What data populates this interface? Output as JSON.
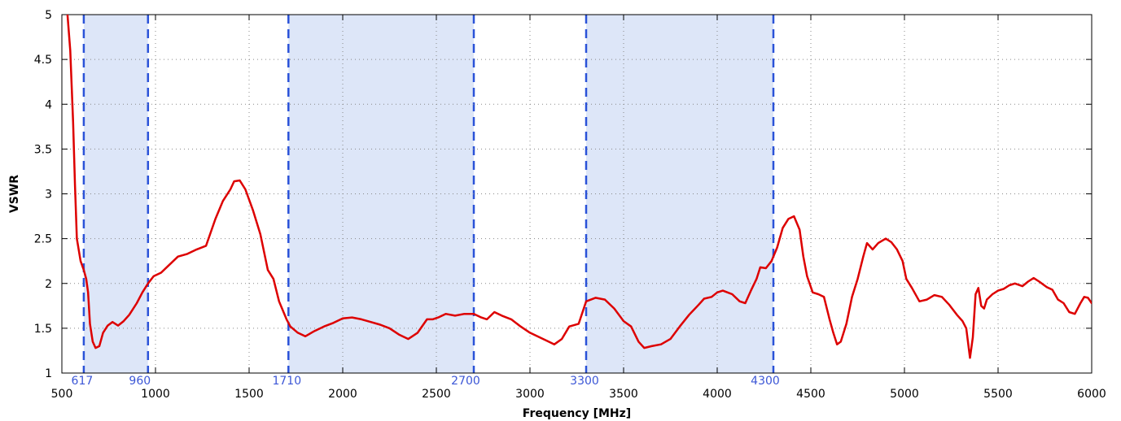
{
  "chart_data": {
    "type": "line",
    "xlabel": "Frequency [MHz]",
    "ylabel": "VSWR",
    "xlim": [
      500,
      6000
    ],
    "ylim": [
      1,
      5
    ],
    "xticks": [
      500,
      1000,
      1500,
      2000,
      2500,
      3000,
      3500,
      4000,
      4500,
      5000,
      5500,
      6000
    ],
    "yticks": [
      1,
      1.5,
      2,
      2.5,
      3,
      3.5,
      4,
      4.5,
      5
    ],
    "ytick_labels": [
      "1",
      "1.5",
      "2",
      "2.5",
      "3",
      "3.5",
      "4",
      "4.5",
      "5"
    ],
    "grid": true,
    "line_color": "#dd0000",
    "band_fill": "#dde6f8",
    "band_line_color": "#2a52d8",
    "band_label_color": "#3b56d6",
    "bands": [
      {
        "start": 617,
        "end": 960,
        "start_label": "617",
        "end_label": "960"
      },
      {
        "start": 1710,
        "end": 2700,
        "start_label": "1710",
        "end_label": "2700"
      },
      {
        "start": 3300,
        "end": 4300,
        "start_label": "3300",
        "end_label": "4300"
      }
    ],
    "series": [
      {
        "points": [
          [
            530,
            5.0
          ],
          [
            545,
            4.6
          ],
          [
            560,
            3.8
          ],
          [
            570,
            3.1
          ],
          [
            580,
            2.5
          ],
          [
            600,
            2.25
          ],
          [
            617,
            2.15
          ],
          [
            630,
            2.05
          ],
          [
            640,
            1.9
          ],
          [
            650,
            1.55
          ],
          [
            665,
            1.35
          ],
          [
            680,
            1.28
          ],
          [
            700,
            1.3
          ],
          [
            720,
            1.45
          ],
          [
            745,
            1.53
          ],
          [
            770,
            1.57
          ],
          [
            800,
            1.53
          ],
          [
            830,
            1.58
          ],
          [
            860,
            1.65
          ],
          [
            900,
            1.78
          ],
          [
            930,
            1.9
          ],
          [
            960,
            2.0
          ],
          [
            990,
            2.08
          ],
          [
            1030,
            2.12
          ],
          [
            1070,
            2.2
          ],
          [
            1120,
            2.3
          ],
          [
            1170,
            2.33
          ],
          [
            1220,
            2.38
          ],
          [
            1270,
            2.42
          ],
          [
            1320,
            2.72
          ],
          [
            1360,
            2.92
          ],
          [
            1400,
            3.05
          ],
          [
            1420,
            3.14
          ],
          [
            1450,
            3.15
          ],
          [
            1480,
            3.05
          ],
          [
            1520,
            2.82
          ],
          [
            1560,
            2.55
          ],
          [
            1600,
            2.15
          ],
          [
            1630,
            2.05
          ],
          [
            1660,
            1.8
          ],
          [
            1700,
            1.6
          ],
          [
            1720,
            1.52
          ],
          [
            1760,
            1.45
          ],
          [
            1800,
            1.41
          ],
          [
            1850,
            1.47
          ],
          [
            1900,
            1.52
          ],
          [
            1950,
            1.56
          ],
          [
            2000,
            1.61
          ],
          [
            2050,
            1.62
          ],
          [
            2100,
            1.6
          ],
          [
            2150,
            1.57
          ],
          [
            2200,
            1.54
          ],
          [
            2250,
            1.5
          ],
          [
            2300,
            1.43
          ],
          [
            2350,
            1.38
          ],
          [
            2400,
            1.45
          ],
          [
            2450,
            1.6
          ],
          [
            2480,
            1.6
          ],
          [
            2510,
            1.62
          ],
          [
            2550,
            1.66
          ],
          [
            2600,
            1.64
          ],
          [
            2650,
            1.66
          ],
          [
            2700,
            1.66
          ],
          [
            2740,
            1.62
          ],
          [
            2770,
            1.6
          ],
          [
            2810,
            1.68
          ],
          [
            2850,
            1.64
          ],
          [
            2900,
            1.6
          ],
          [
            2950,
            1.52
          ],
          [
            3000,
            1.45
          ],
          [
            3050,
            1.4
          ],
          [
            3100,
            1.35
          ],
          [
            3130,
            1.32
          ],
          [
            3170,
            1.38
          ],
          [
            3210,
            1.52
          ],
          [
            3260,
            1.55
          ],
          [
            3300,
            1.8
          ],
          [
            3350,
            1.84
          ],
          [
            3400,
            1.82
          ],
          [
            3450,
            1.72
          ],
          [
            3500,
            1.58
          ],
          [
            3540,
            1.52
          ],
          [
            3580,
            1.35
          ],
          [
            3610,
            1.28
          ],
          [
            3650,
            1.3
          ],
          [
            3700,
            1.32
          ],
          [
            3750,
            1.38
          ],
          [
            3800,
            1.52
          ],
          [
            3850,
            1.65
          ],
          [
            3900,
            1.76
          ],
          [
            3930,
            1.83
          ],
          [
            3970,
            1.85
          ],
          [
            4000,
            1.9
          ],
          [
            4030,
            1.92
          ],
          [
            4080,
            1.88
          ],
          [
            4120,
            1.8
          ],
          [
            4150,
            1.78
          ],
          [
            4180,
            1.92
          ],
          [
            4210,
            2.05
          ],
          [
            4230,
            2.18
          ],
          [
            4260,
            2.17
          ],
          [
            4290,
            2.25
          ],
          [
            4320,
            2.4
          ],
          [
            4350,
            2.62
          ],
          [
            4380,
            2.72
          ],
          [
            4410,
            2.75
          ],
          [
            4440,
            2.6
          ],
          [
            4460,
            2.3
          ],
          [
            4480,
            2.08
          ],
          [
            4510,
            1.9
          ],
          [
            4540,
            1.88
          ],
          [
            4570,
            1.85
          ],
          [
            4600,
            1.6
          ],
          [
            4620,
            1.45
          ],
          [
            4640,
            1.32
          ],
          [
            4660,
            1.35
          ],
          [
            4690,
            1.55
          ],
          [
            4720,
            1.85
          ],
          [
            4750,
            2.05
          ],
          [
            4780,
            2.3
          ],
          [
            4800,
            2.45
          ],
          [
            4830,
            2.38
          ],
          [
            4860,
            2.45
          ],
          [
            4900,
            2.5
          ],
          [
            4930,
            2.46
          ],
          [
            4960,
            2.38
          ],
          [
            4990,
            2.25
          ],
          [
            5010,
            2.05
          ],
          [
            5040,
            1.95
          ],
          [
            5080,
            1.8
          ],
          [
            5120,
            1.82
          ],
          [
            5160,
            1.87
          ],
          [
            5200,
            1.85
          ],
          [
            5240,
            1.76
          ],
          [
            5280,
            1.65
          ],
          [
            5310,
            1.58
          ],
          [
            5330,
            1.5
          ],
          [
            5350,
            1.17
          ],
          [
            5365,
            1.4
          ],
          [
            5380,
            1.88
          ],
          [
            5395,
            1.95
          ],
          [
            5410,
            1.75
          ],
          [
            5425,
            1.72
          ],
          [
            5440,
            1.82
          ],
          [
            5470,
            1.88
          ],
          [
            5500,
            1.92
          ],
          [
            5530,
            1.94
          ],
          [
            5560,
            1.98
          ],
          [
            5590,
            2.0
          ],
          [
            5630,
            1.97
          ],
          [
            5660,
            2.02
          ],
          [
            5690,
            2.06
          ],
          [
            5720,
            2.02
          ],
          [
            5760,
            1.96
          ],
          [
            5790,
            1.93
          ],
          [
            5820,
            1.82
          ],
          [
            5850,
            1.78
          ],
          [
            5880,
            1.68
          ],
          [
            5910,
            1.66
          ],
          [
            5940,
            1.78
          ],
          [
            5960,
            1.85
          ],
          [
            5980,
            1.84
          ],
          [
            6000,
            1.78
          ]
        ]
      }
    ]
  }
}
